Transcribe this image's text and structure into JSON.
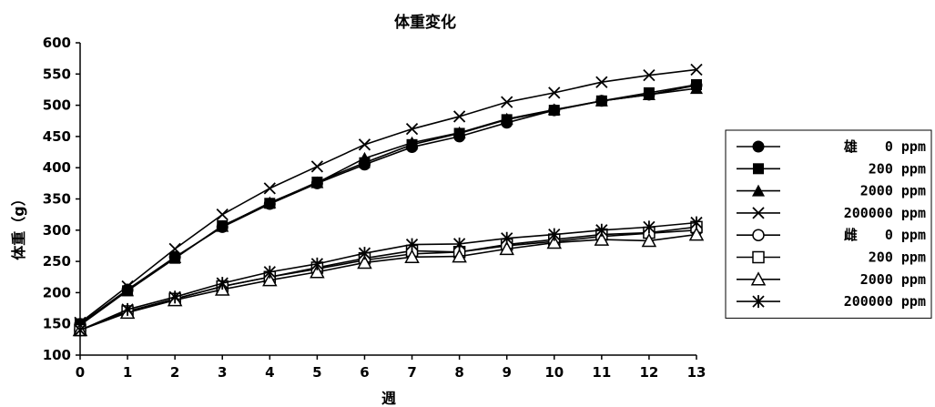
{
  "chart_data": {
    "type": "line",
    "title": "体重変化",
    "xlabel": "週",
    "ylabel": "体重（g）",
    "ylim": [
      100,
      600
    ],
    "yticks": [
      100,
      150,
      200,
      250,
      300,
      350,
      400,
      450,
      500,
      550,
      600
    ],
    "x": [
      0,
      1,
      2,
      3,
      4,
      5,
      6,
      7,
      8,
      9,
      10,
      11,
      12,
      13
    ],
    "grid": false,
    "legend_position": "right",
    "series": [
      {
        "name": "雄　　0 ppm",
        "marker": "circle-filled",
        "values": [
          150,
          205,
          257,
          305,
          342,
          375,
          405,
          433,
          450,
          472,
          492,
          507,
          517,
          532
        ]
      },
      {
        "name": "200 ppm",
        "marker": "square-filled",
        "values": [
          150,
          203,
          255,
          307,
          343,
          377,
          408,
          437,
          455,
          477,
          492,
          507,
          520,
          533
        ]
      },
      {
        "name": "2000 ppm",
        "marker": "triangle-filled",
        "values": [
          148,
          203,
          256,
          306,
          344,
          376,
          415,
          440,
          456,
          478,
          493,
          507,
          517,
          527
        ]
      },
      {
        "name": "200000 ppm",
        "marker": "x",
        "values": [
          152,
          210,
          270,
          325,
          367,
          402,
          437,
          462,
          482,
          505,
          520,
          537,
          548,
          557
        ]
      },
      {
        "name": "雌　　0 ppm",
        "marker": "circle-open",
        "values": [
          140,
          170,
          190,
          210,
          225,
          238,
          252,
          262,
          265,
          275,
          282,
          290,
          295,
          300
        ]
      },
      {
        "name": "200 ppm",
        "marker": "square-open",
        "values": [
          140,
          170,
          190,
          210,
          225,
          240,
          255,
          267,
          265,
          277,
          285,
          293,
          296,
          305
        ]
      },
      {
        "name": "2000 ppm",
        "marker": "triangle-open",
        "values": [
          140,
          168,
          188,
          205,
          220,
          233,
          248,
          257,
          258,
          270,
          280,
          285,
          283,
          293
        ]
      },
      {
        "name": "200000 ppm",
        "marker": "asterisk",
        "values": [
          140,
          173,
          193,
          215,
          233,
          246,
          263,
          277,
          278,
          287,
          293,
          300,
          305,
          312
        ]
      }
    ]
  }
}
